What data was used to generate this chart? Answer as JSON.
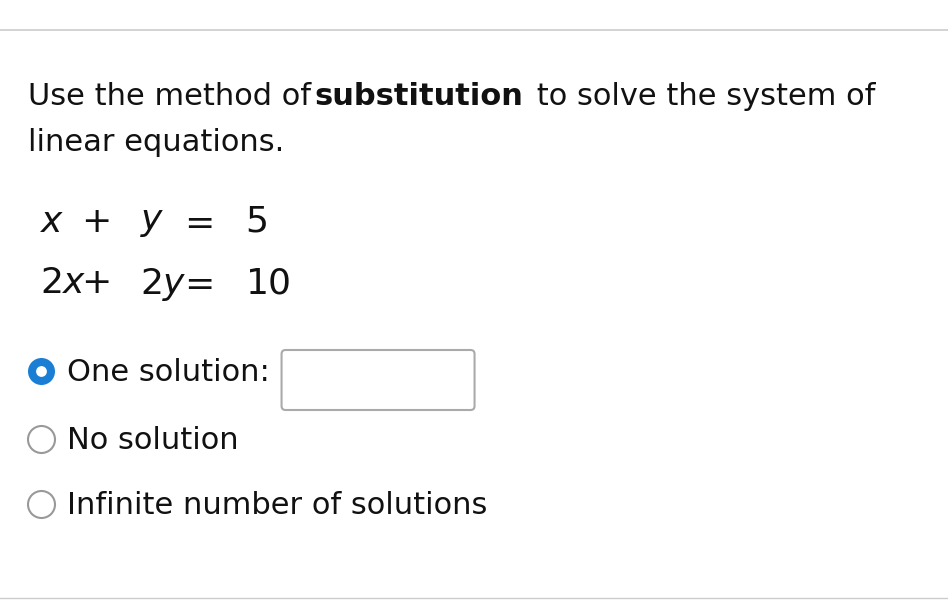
{
  "background_color": "#ffffff",
  "line_color": "#cccccc",
  "text_color": "#111111",
  "radio_selected_color": "#1a7fd4",
  "radio_border_color": "#999999",
  "box_border_color": "#aaaaaa",
  "header_prefix": "Use the method of ",
  "header_bold": "substitution",
  "header_suffix": " to solve the system of",
  "header_line2": "linear equations.",
  "eq1_x": "$x$",
  "eq1_plus": "+",
  "eq1_y": "$y$",
  "eq1_eq": "=",
  "eq1_val": "5",
  "eq2_x": "$2x$",
  "eq2_plus": "+",
  "eq2_y": "$2y$",
  "eq2_eq": "=",
  "eq2_val": "10",
  "opt1": "One solution:",
  "opt2": "No solution",
  "opt3": "Infinite number of solutions",
  "font_size_header": 22,
  "font_size_eq": 26,
  "font_size_opt": 22,
  "figwidth": 9.48,
  "figheight": 6.06,
  "dpi": 100
}
